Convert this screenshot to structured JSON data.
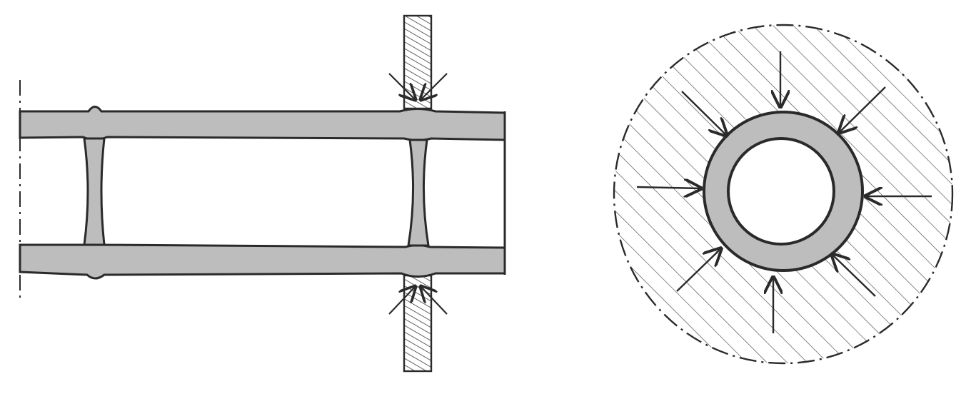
{
  "figure": {
    "panels": [
      {
        "id": "pipe-longitudinal-section",
        "kind": "side-view"
      },
      {
        "id": "pipe-cross-section",
        "kind": "end-view"
      }
    ],
    "colors": {
      "ink": "#2a2a2a",
      "wall_fill": "#bdbdbd",
      "hatch": "#3a3a3a",
      "background": "#ffffff"
    }
  }
}
